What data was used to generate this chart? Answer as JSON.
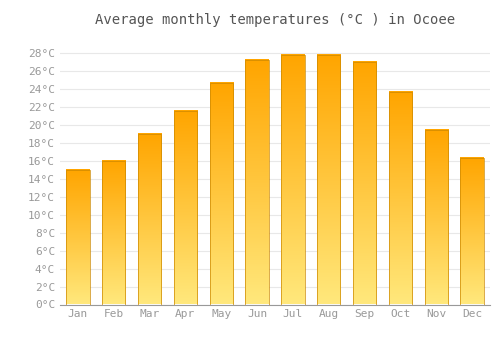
{
  "title": "Average monthly temperatures (°C ) in Ocoee",
  "months": [
    "Jan",
    "Feb",
    "Mar",
    "Apr",
    "May",
    "Jun",
    "Jul",
    "Aug",
    "Sep",
    "Oct",
    "Nov",
    "Dec"
  ],
  "values": [
    15.0,
    16.0,
    19.0,
    21.5,
    24.7,
    27.2,
    27.8,
    27.8,
    27.0,
    23.7,
    19.4,
    16.3
  ],
  "bar_color_top": "#FFA500",
  "bar_color_bottom": "#FFE87C",
  "bar_border_color": "#CC8800",
  "background_color": "#FFFFFF",
  "grid_color": "#E8E8E8",
  "text_color": "#999999",
  "title_color": "#555555",
  "ylim": [
    0,
    30
  ],
  "yticks": [
    0,
    2,
    4,
    6,
    8,
    10,
    12,
    14,
    16,
    18,
    20,
    22,
    24,
    26,
    28
  ],
  "title_fontsize": 10,
  "tick_fontsize": 8,
  "bar_width": 0.65
}
